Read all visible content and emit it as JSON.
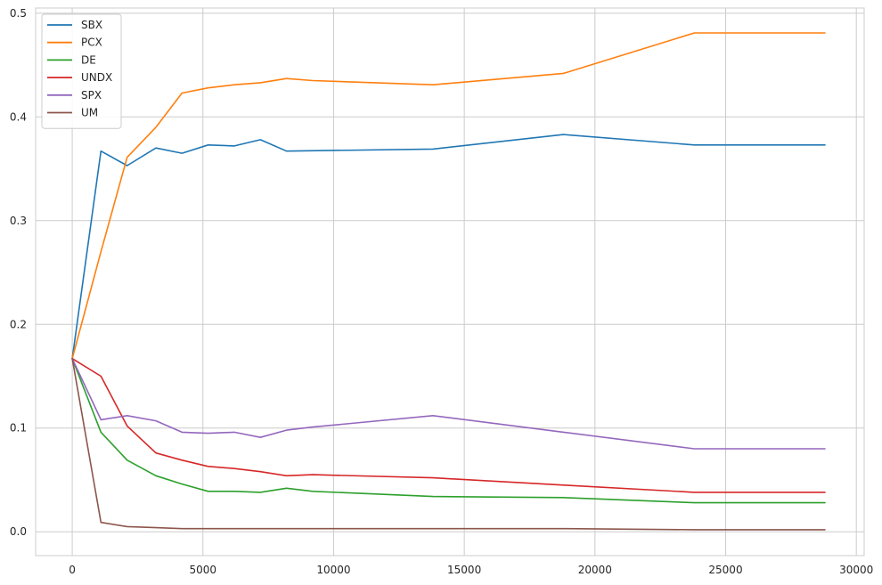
{
  "chart_data": {
    "type": "line",
    "title": "",
    "xlabel": "",
    "ylabel": "",
    "xlim": [
      -1400,
      30300
    ],
    "ylim": [
      -0.023,
      0.505
    ],
    "xticks": [
      0,
      5000,
      10000,
      15000,
      20000,
      25000,
      30000
    ],
    "xtick_labels": [
      "0",
      "5000",
      "10000",
      "15000",
      "20000",
      "25000",
      "30000"
    ],
    "yticks": [
      0.0,
      0.1,
      0.2,
      0.3,
      0.4,
      0.5
    ],
    "ytick_labels": [
      "0.0",
      "0.1",
      "0.2",
      "0.3",
      "0.4",
      "0.5"
    ],
    "grid": true,
    "legend_position": "top-left",
    "series": [
      {
        "name": "SBX",
        "color": "#1f77b4",
        "x": [
          0,
          1100,
          2100,
          3200,
          4200,
          5200,
          6200,
          7200,
          8200,
          13800,
          18800,
          23800,
          28800
        ],
        "y": [
          0.167,
          0.367,
          0.353,
          0.37,
          0.365,
          0.373,
          0.372,
          0.378,
          0.367,
          0.369,
          0.383,
          0.373,
          0.373
        ]
      },
      {
        "name": "PCX",
        "color": "#ff7f0e",
        "x": [
          0,
          1100,
          2100,
          3200,
          4200,
          5200,
          6200,
          7200,
          8200,
          9200,
          13800,
          18800,
          23800,
          28800
        ],
        "y": [
          0.167,
          0.27,
          0.361,
          0.39,
          0.423,
          0.428,
          0.431,
          0.433,
          0.437,
          0.435,
          0.431,
          0.442,
          0.481,
          0.481
        ]
      },
      {
        "name": "DE",
        "color": "#2ca02c",
        "x": [
          0,
          1100,
          2100,
          3200,
          4200,
          5200,
          6200,
          7200,
          8200,
          9200,
          13800,
          18800,
          23800,
          28800
        ],
        "y": [
          0.167,
          0.096,
          0.069,
          0.054,
          0.046,
          0.039,
          0.039,
          0.038,
          0.042,
          0.039,
          0.034,
          0.033,
          0.028,
          0.028
        ]
      },
      {
        "name": "UNDX",
        "color": "#d62728",
        "x": [
          0,
          1100,
          2100,
          3200,
          4200,
          5200,
          6200,
          7200,
          8200,
          9200,
          13800,
          18800,
          23800,
          28800
        ],
        "y": [
          0.167,
          0.15,
          0.102,
          0.076,
          0.069,
          0.063,
          0.061,
          0.058,
          0.054,
          0.055,
          0.052,
          0.045,
          0.038,
          0.038
        ]
      },
      {
        "name": "SPX",
        "color": "#9467bd",
        "x": [
          0,
          1100,
          2100,
          3200,
          4200,
          5200,
          6200,
          7200,
          8200,
          9200,
          13800,
          18800,
          23800,
          28800
        ],
        "y": [
          0.167,
          0.108,
          0.112,
          0.107,
          0.096,
          0.095,
          0.096,
          0.091,
          0.098,
          0.101,
          0.112,
          0.096,
          0.08,
          0.08
        ]
      },
      {
        "name": "UM",
        "color": "#8c564b",
        "x": [
          0,
          1100,
          2100,
          3200,
          4200,
          5200,
          8200,
          13800,
          18800,
          23800,
          28800
        ],
        "y": [
          0.167,
          0.009,
          0.005,
          0.004,
          0.003,
          0.003,
          0.003,
          0.003,
          0.003,
          0.002,
          0.002
        ]
      }
    ]
  }
}
